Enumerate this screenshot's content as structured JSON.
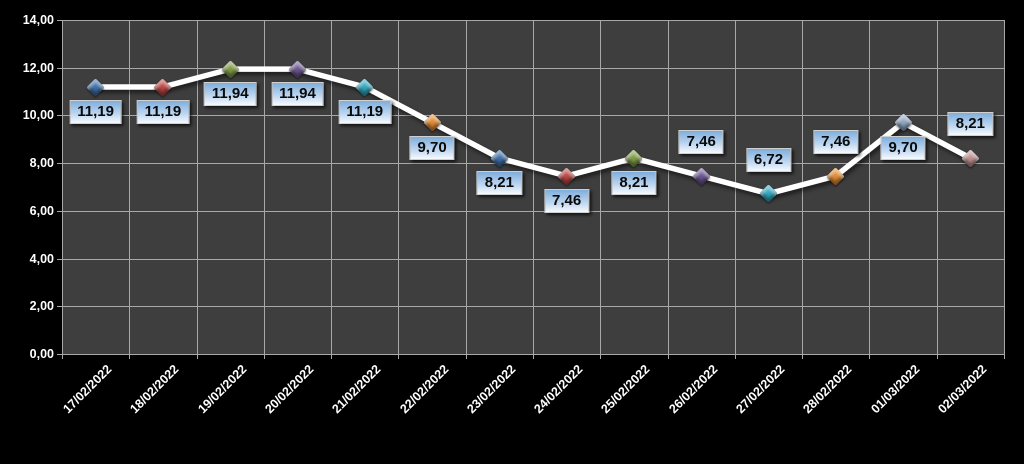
{
  "chart_data": {
    "type": "line",
    "title": "",
    "legend": "none",
    "grid": true,
    "background": "#000000",
    "plot_bg": "#3E3E3E",
    "gridline_color": "#A8A8A8",
    "axis_text_color": "#FFFFFF",
    "line_color": "#FFFFFF",
    "categories": [
      "17/02/2022",
      "18/02/2022",
      "19/02/2022",
      "20/02/2022",
      "21/02/2022",
      "22/02/2022",
      "23/02/2022",
      "24/02/2022",
      "25/02/2022",
      "26/02/2022",
      "27/02/2022",
      "28/02/2022",
      "01/03/2022",
      "02/03/2022"
    ],
    "values": [
      11.19,
      11.19,
      11.94,
      11.94,
      11.19,
      9.7,
      8.21,
      7.46,
      8.21,
      7.46,
      6.72,
      7.46,
      9.7,
      8.21
    ],
    "point_labels": [
      "11,19",
      "11,19",
      "11,94",
      "11,94",
      "11,19",
      "9,70",
      "8,21",
      "7,46",
      "8,21",
      "7,46",
      "6,72",
      "7,46",
      "9,70",
      "8,21"
    ],
    "label_positions": [
      "below",
      "below",
      "below",
      "below",
      "below",
      "below",
      "below",
      "below",
      "below",
      "above",
      "above",
      "above",
      "below",
      "above"
    ],
    "marker_colors": [
      "#3F6EA6",
      "#B94643",
      "#7E9A44",
      "#6B5590",
      "#31A5BC",
      "#E08A33",
      "#3F6EA6",
      "#B94643",
      "#7E9A44",
      "#6B5590",
      "#31A5BC",
      "#E08A33",
      "#8FA5C0",
      "#BE9090"
    ],
    "ylim": [
      0,
      14
    ],
    "y_tick_values": [
      14,
      12,
      10,
      8,
      6,
      4,
      2,
      0
    ],
    "y_tick_labels": [
      "14,00",
      "12,00",
      "10,00",
      "8,00",
      "6,00",
      "4,00",
      "2,00",
      "0,00"
    ],
    "xlabel": "",
    "ylabel": ""
  }
}
